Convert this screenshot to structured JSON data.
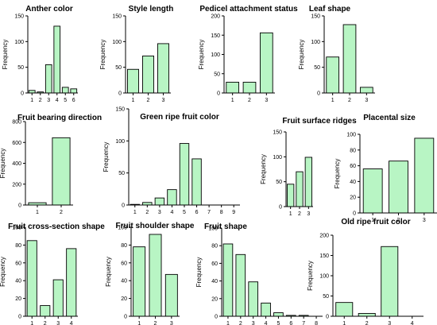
{
  "chart_data": [
    {
      "type": "bar",
      "title": "Anther color",
      "ylabel": "Frequency",
      "categories": [
        "1",
        "2",
        "3",
        "4",
        "5",
        "6"
      ],
      "values": [
        5,
        2,
        55,
        130,
        11,
        8
      ],
      "ylim": [
        0,
        150
      ],
      "yticks": [
        0,
        50,
        100,
        150
      ],
      "grid": false
    },
    {
      "type": "bar",
      "title": "Style length",
      "ylabel": "Frequency",
      "categories": [
        "1",
        "2",
        "3"
      ],
      "values": [
        46,
        72,
        96
      ],
      "ylim": [
        0,
        150
      ],
      "yticks": [
        0,
        50,
        100,
        150
      ],
      "grid": false
    },
    {
      "type": "bar",
      "title": "Pedicel attachment status",
      "ylabel": "Frequency",
      "categories": [
        "1",
        "2",
        "3"
      ],
      "values": [
        28,
        28,
        156
      ],
      "ylim": [
        0,
        200
      ],
      "yticks": [
        0,
        50,
        100,
        150,
        200
      ],
      "grid": false
    },
    {
      "type": "bar",
      "title": "Leaf shape",
      "ylabel": "Frequency",
      "categories": [
        "1",
        "2",
        "3"
      ],
      "values": [
        70,
        133,
        11
      ],
      "ylim": [
        0,
        150
      ],
      "yticks": [
        0,
        50,
        100,
        150
      ],
      "grid": false
    },
    {
      "type": "bar",
      "title": "Fruit bearing direction",
      "ylabel": "Frequency",
      "categories": [
        "1",
        "2"
      ],
      "values": [
        22,
        645
      ],
      "ylim": [
        0,
        800
      ],
      "yticks": [
        0,
        200,
        400,
        600,
        800
      ],
      "grid": false
    },
    {
      "type": "bar",
      "title": "Green ripe fruit color",
      "ylabel": "Frequency",
      "categories": [
        "1",
        "2",
        "3",
        "4",
        "5",
        "6",
        "7",
        "8",
        "9"
      ],
      "values": [
        1,
        4,
        11,
        24,
        96,
        72,
        0,
        0,
        0
      ],
      "ylim": [
        0,
        150
      ],
      "yticks": [
        0,
        50,
        100,
        150
      ],
      "grid": false
    },
    {
      "type": "bar",
      "title": "Fruit surface ridges",
      "ylabel": "Frequency",
      "categories": [
        "1",
        "2",
        "3"
      ],
      "values": [
        45,
        70,
        99
      ],
      "ylim": [
        0,
        150
      ],
      "yticks": [
        0,
        50,
        100,
        150
      ],
      "grid": false
    },
    {
      "type": "bar",
      "title": "Placental size",
      "ylabel": "Frequency",
      "categories": [
        "1",
        "2",
        "3"
      ],
      "values": [
        56,
        66,
        95
      ],
      "ylim": [
        0,
        100
      ],
      "yticks": [
        0,
        20,
        40,
        60,
        80,
        100
      ],
      "grid": false
    },
    {
      "type": "bar",
      "title": "Fruit cross-section shape",
      "ylabel": "Frequency",
      "categories": [
        "1",
        "2",
        "3",
        "4"
      ],
      "values": [
        85,
        12,
        41,
        76
      ],
      "ylim": [
        0,
        100
      ],
      "yticks": [
        0,
        20,
        40,
        60,
        80,
        100
      ],
      "grid": false
    },
    {
      "type": "bar",
      "title": "Fruit shoulder shape",
      "ylabel": "Frequency",
      "categories": [
        "1",
        "2",
        "3"
      ],
      "values": [
        78,
        92,
        47
      ],
      "ylim": [
        0,
        100
      ],
      "yticks": [
        0,
        20,
        40,
        60,
        80,
        100
      ],
      "grid": false
    },
    {
      "type": "bar",
      "title": "Fruit shape",
      "ylabel": "Frequency",
      "categories": [
        "1",
        "2",
        "3",
        "4",
        "5",
        "6",
        "7",
        "8"
      ],
      "values": [
        82,
        70,
        39,
        15,
        4,
        1,
        1,
        0
      ],
      "ylim": [
        0,
        100
      ],
      "yticks": [
        0,
        20,
        40,
        60,
        80,
        100
      ],
      "grid": false
    },
    {
      "type": "bar",
      "title": "Old ripe fruit color",
      "ylabel": "Frequency",
      "categories": [
        "1",
        "2",
        "3",
        "4"
      ],
      "values": [
        34,
        7,
        172,
        0
      ],
      "ylim": [
        0,
        200
      ],
      "yticks": [
        0,
        50,
        100,
        150,
        200
      ],
      "grid": false
    }
  ]
}
